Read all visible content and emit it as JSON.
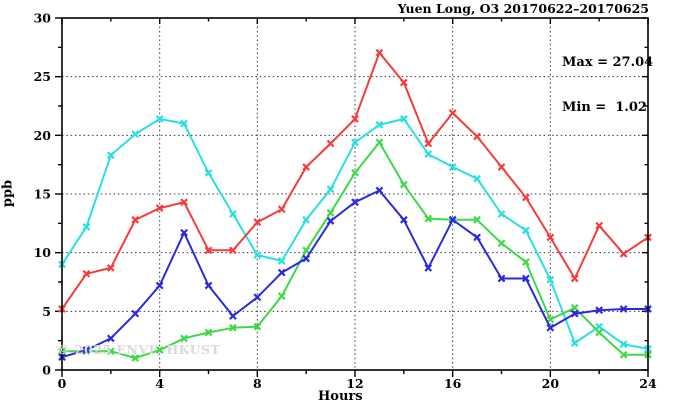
{
  "title": "Yuen Long, O3 20170622–20170625",
  "annotation": {
    "max_label": "Max = 27.04",
    "min_label": "Min =  1.02"
  },
  "watermark": "© 2025 ENVF, HKUST",
  "chart_data": {
    "type": "line",
    "title": "Yuen Long, O3 20170622–20170625",
    "xlabel": "Hours",
    "ylabel": "ppb",
    "xlim": [
      0,
      24
    ],
    "ylim": [
      0,
      30
    ],
    "xticks_major": [
      0,
      4,
      8,
      12,
      16,
      20,
      24
    ],
    "xticks_minor_step": 2,
    "yticks_major": [
      0,
      5,
      10,
      15,
      20,
      25,
      30
    ],
    "yticks_minor_step": 2.5,
    "grid": {
      "x_lines": [
        4,
        8,
        12,
        16,
        20
      ],
      "y_lines": [
        5,
        10,
        15,
        20,
        25
      ],
      "style": "dotted"
    },
    "legend": "none",
    "max_value": 27.04,
    "min_value": 1.02,
    "x": [
      0,
      1,
      2,
      3,
      4,
      5,
      6,
      7,
      8,
      9,
      10,
      11,
      12,
      13,
      14,
      15,
      16,
      17,
      18,
      19,
      20,
      21,
      22,
      23,
      24
    ],
    "series": [
      {
        "name": "cyan",
        "color": "#29dfe2",
        "values": [
          9.0,
          12.2,
          18.3,
          20.1,
          21.4,
          21.0,
          16.8,
          13.3,
          9.8,
          9.3,
          12.8,
          15.4,
          19.4,
          20.9,
          21.4,
          18.4,
          17.3,
          16.3,
          13.3,
          11.9,
          7.7,
          2.3,
          3.7,
          2.2,
          1.8
        ]
      },
      {
        "name": "green",
        "color": "#3fd947",
        "values": [
          1.6,
          1.6,
          1.6,
          1.02,
          1.7,
          2.7,
          3.2,
          3.6,
          3.7,
          6.3,
          10.2,
          13.4,
          16.8,
          19.4,
          15.8,
          12.9,
          12.8,
          12.8,
          10.8,
          9.2,
          4.3,
          5.3,
          3.2,
          1.3,
          1.3
        ]
      },
      {
        "name": "blue",
        "color": "#2b2bdc",
        "values": [
          1.1,
          1.7,
          2.7,
          4.8,
          7.2,
          11.7,
          7.2,
          4.6,
          6.2,
          8.3,
          9.5,
          12.7,
          14.3,
          15.3,
          12.8,
          8.7,
          12.8,
          11.3,
          7.8,
          7.8,
          3.6,
          4.8,
          5.1,
          5.2,
          5.2
        ]
      },
      {
        "name": "red",
        "color": "#f53c3c",
        "values": [
          5.2,
          8.2,
          8.7,
          12.8,
          13.8,
          14.3,
          10.2,
          10.2,
          12.6,
          13.7,
          17.3,
          19.3,
          21.4,
          27.04,
          24.5,
          19.3,
          21.9,
          19.9,
          17.3,
          14.7,
          11.3,
          7.8,
          12.3,
          9.9,
          11.3
        ]
      }
    ]
  }
}
